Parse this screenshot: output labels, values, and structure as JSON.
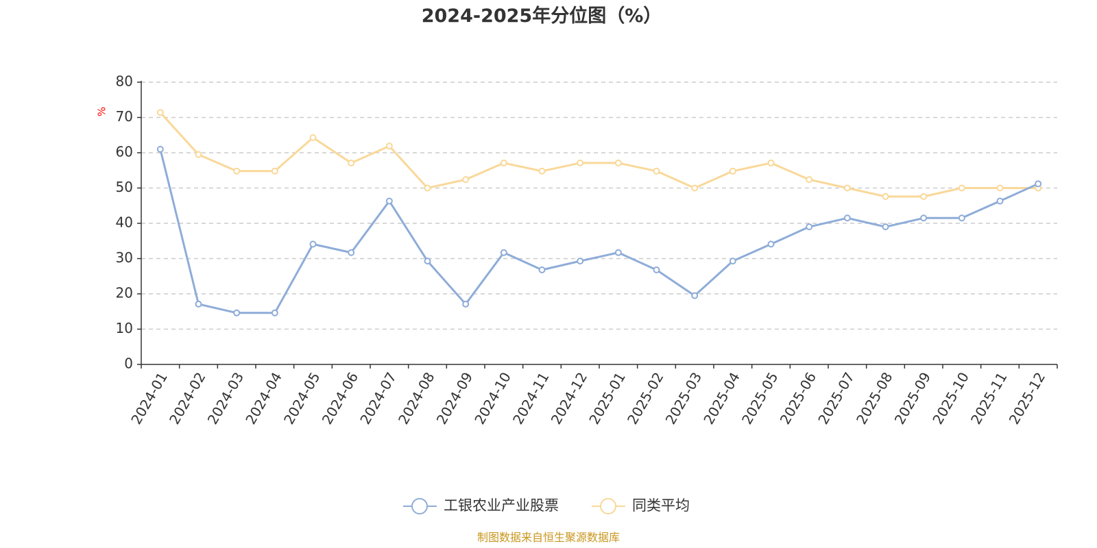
{
  "chart_data": {
    "type": "line",
    "title": "2024-2025年分位图（%）",
    "y_unit": "%",
    "ylim": [
      0,
      80
    ],
    "y_ticks": [
      "0",
      "10",
      "20",
      "30",
      "40",
      "50",
      "60",
      "70",
      "80"
    ],
    "grid": true,
    "legend_position": "bottom",
    "categories": [
      "2024-01",
      "2024-02",
      "2024-03",
      "2024-04",
      "2024-05",
      "2024-06",
      "2024-07",
      "2024-08",
      "2024-09",
      "2024-10",
      "2024-11",
      "2024-12",
      "2025-01",
      "2025-02",
      "2025-03",
      "2025-04",
      "2025-05",
      "2025-06",
      "2025-07",
      "2025-08",
      "2025-09",
      "2025-10",
      "2025-11",
      "2025-12"
    ],
    "series": [
      {
        "name": "工银农业产业股票",
        "color": "#8eacd8",
        "values": [
          61.0,
          17.1,
          14.6,
          14.6,
          34.1,
          31.7,
          46.3,
          29.3,
          17.1,
          31.7,
          26.8,
          29.3,
          31.7,
          26.8,
          19.5,
          29.3,
          34.1,
          39.0,
          41.5,
          39.0,
          41.5,
          41.5,
          46.3,
          51.2
        ]
      },
      {
        "name": "同类平均",
        "color": "#f9d899",
        "values": [
          71.4,
          59.5,
          54.8,
          54.8,
          64.3,
          57.1,
          61.9,
          50.0,
          52.4,
          57.1,
          54.8,
          57.1,
          57.1,
          54.8,
          50.0,
          54.8,
          57.1,
          52.4,
          50.0,
          47.6,
          47.6,
          50.0,
          50.0,
          50.0
        ]
      }
    ]
  },
  "colors": {
    "axis": "#333333",
    "grid": "#cccccc",
    "unit": "#ff0000",
    "source": "#c8961e"
  },
  "source_text": "制图数据来自恒生聚源数据库"
}
